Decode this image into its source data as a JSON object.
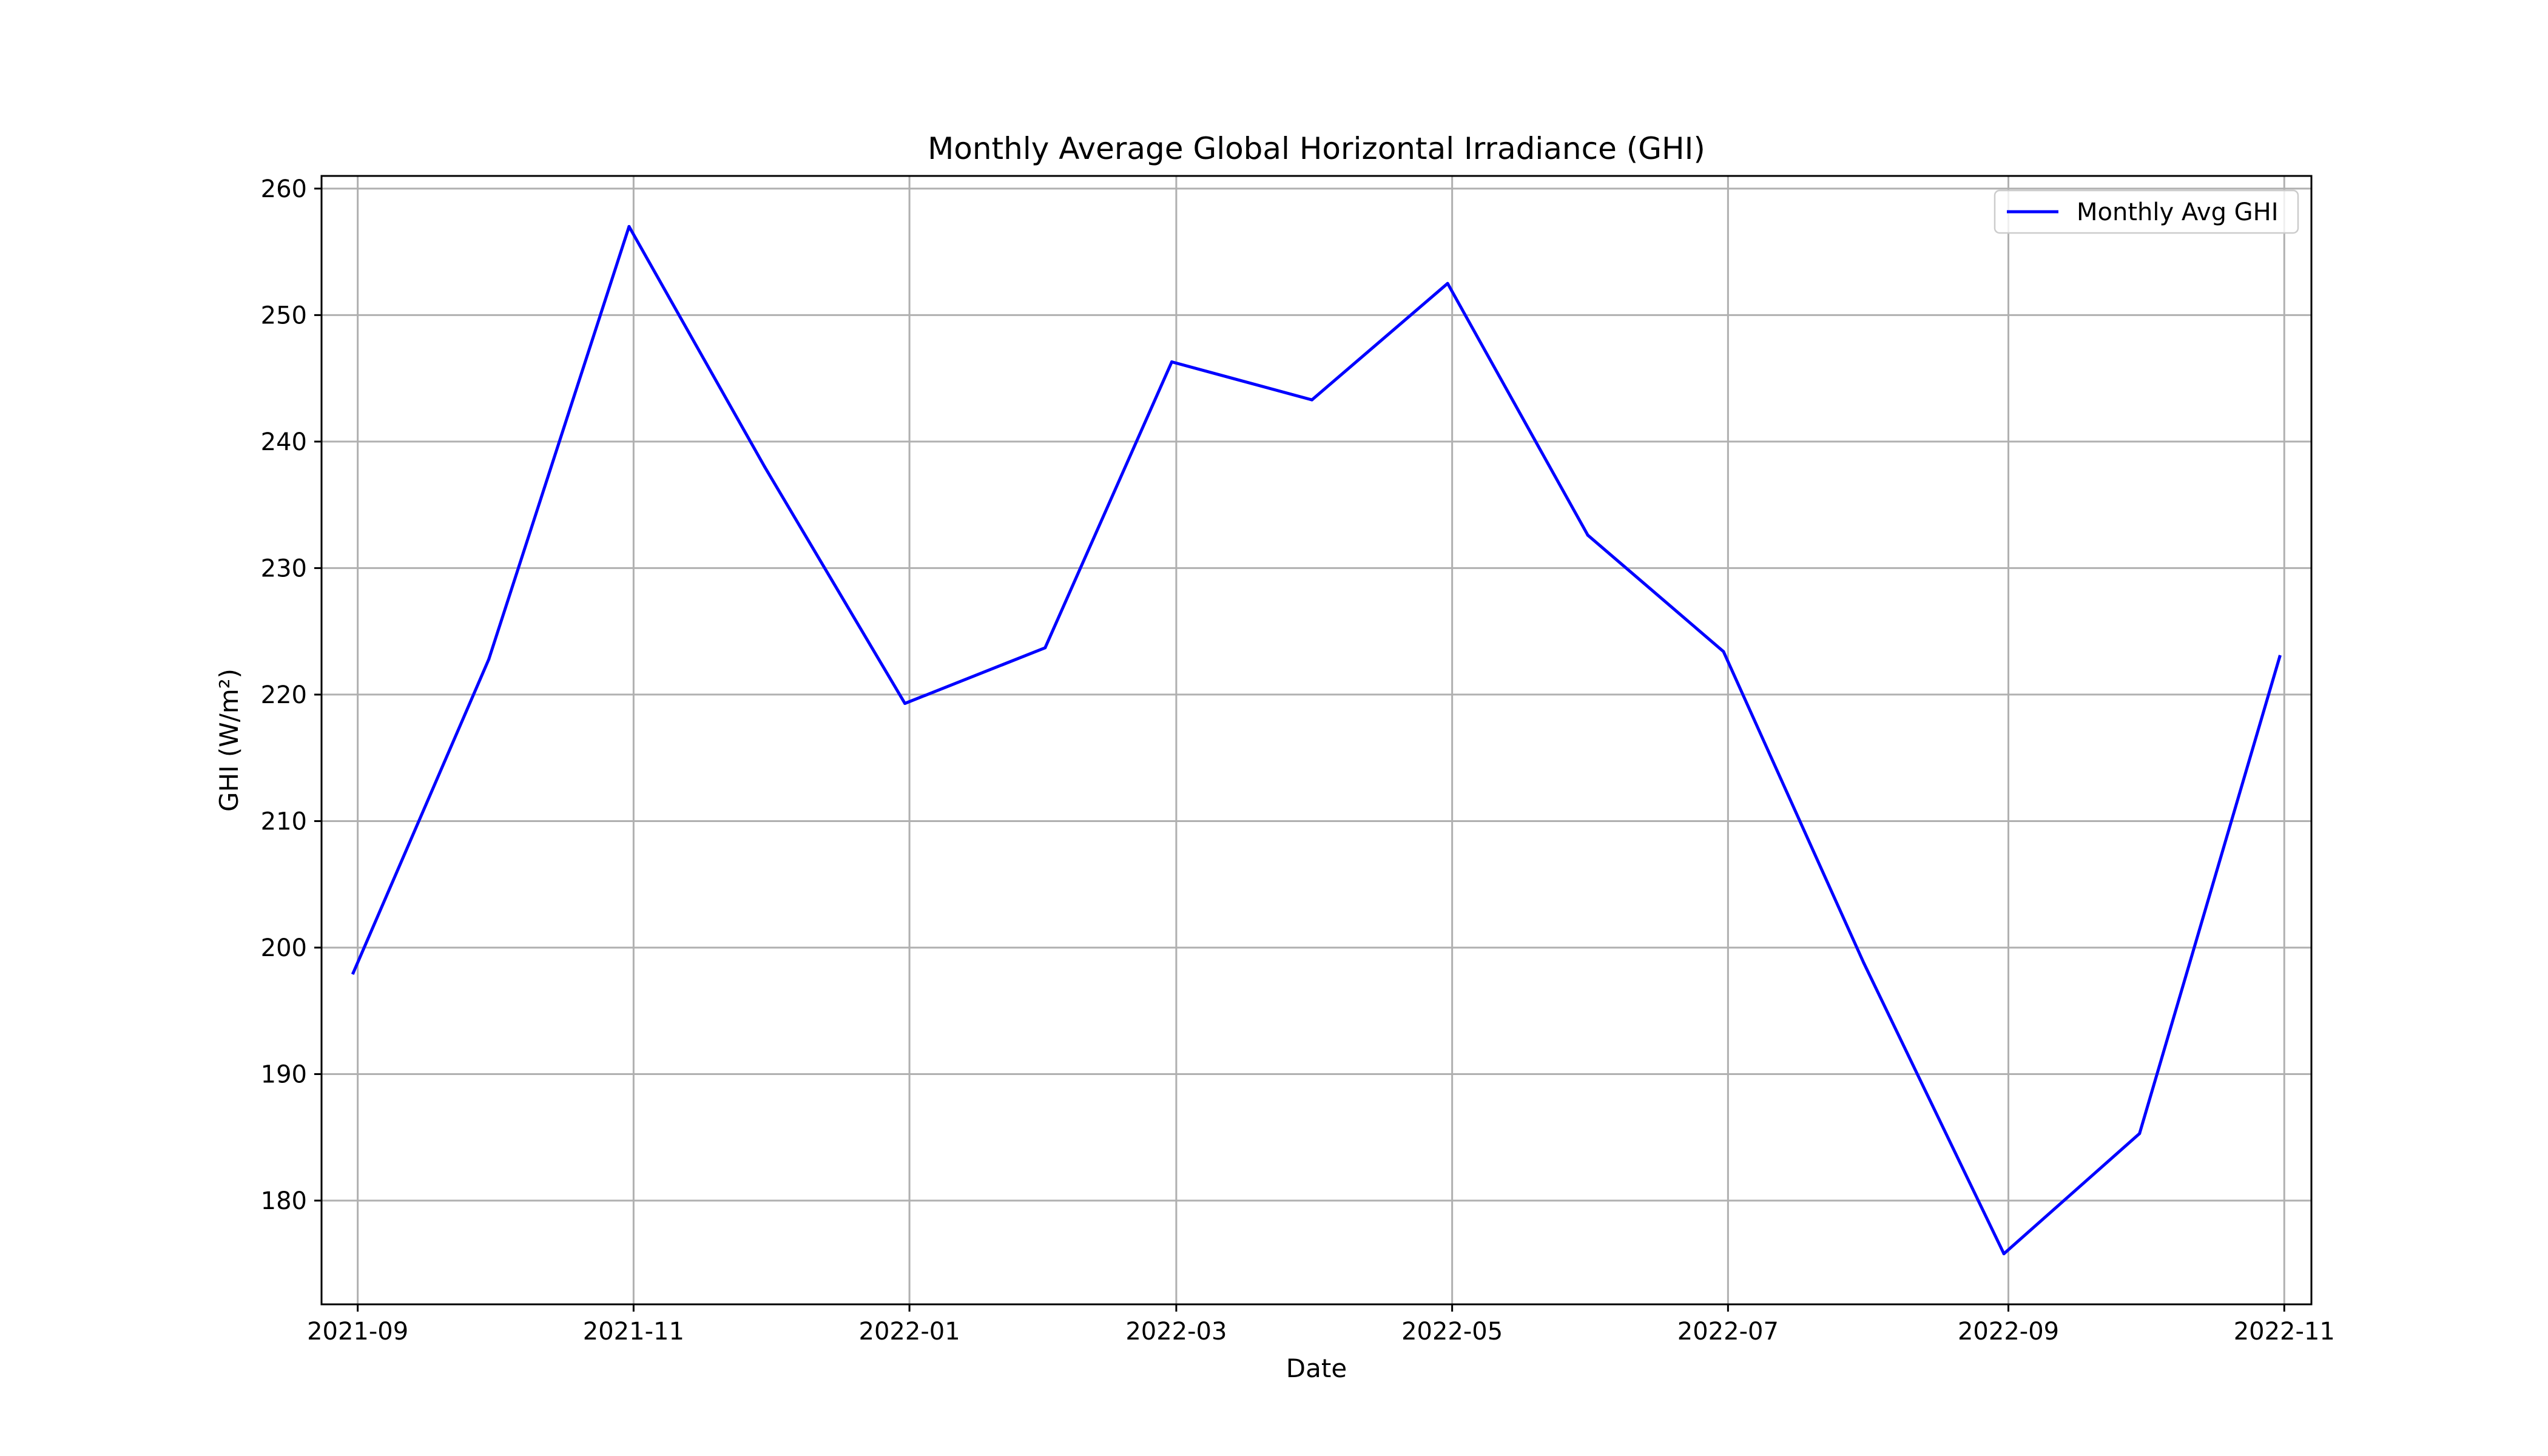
{
  "chart_data": {
    "type": "line",
    "title": "Monthly Average Global Horizontal Irradiance (GHI)",
    "xlabel": "Date",
    "ylabel": "GHI (W/m²)",
    "x_type": "date",
    "xlim": [
      "2021-08-24",
      "2022-11-07"
    ],
    "ylim": [
      171.8,
      261.0
    ],
    "x_ticks": [
      "2021-09",
      "2021-11",
      "2022-01",
      "2022-03",
      "2022-05",
      "2022-07",
      "2022-09",
      "2022-11"
    ],
    "y_ticks": [
      180,
      190,
      200,
      210,
      220,
      230,
      240,
      250,
      260
    ],
    "grid": true,
    "legend_position": "upper right",
    "series": [
      {
        "name": "Monthly Avg GHI",
        "color": "#0000ff",
        "x": [
          "2021-08-31",
          "2021-09-30",
          "2021-10-31",
          "2021-11-30",
          "2021-12-31",
          "2022-01-31",
          "2022-02-28",
          "2022-03-31",
          "2022-04-30",
          "2022-05-31",
          "2022-06-30",
          "2022-07-31",
          "2022-08-31",
          "2022-09-30",
          "2022-10-31"
        ],
        "values": [
          198.0,
          222.8,
          257.0,
          238.0,
          219.3,
          223.7,
          246.3,
          243.3,
          252.5,
          232.6,
          223.4,
          198.8,
          175.8,
          185.3,
          223.0
        ]
      }
    ]
  }
}
